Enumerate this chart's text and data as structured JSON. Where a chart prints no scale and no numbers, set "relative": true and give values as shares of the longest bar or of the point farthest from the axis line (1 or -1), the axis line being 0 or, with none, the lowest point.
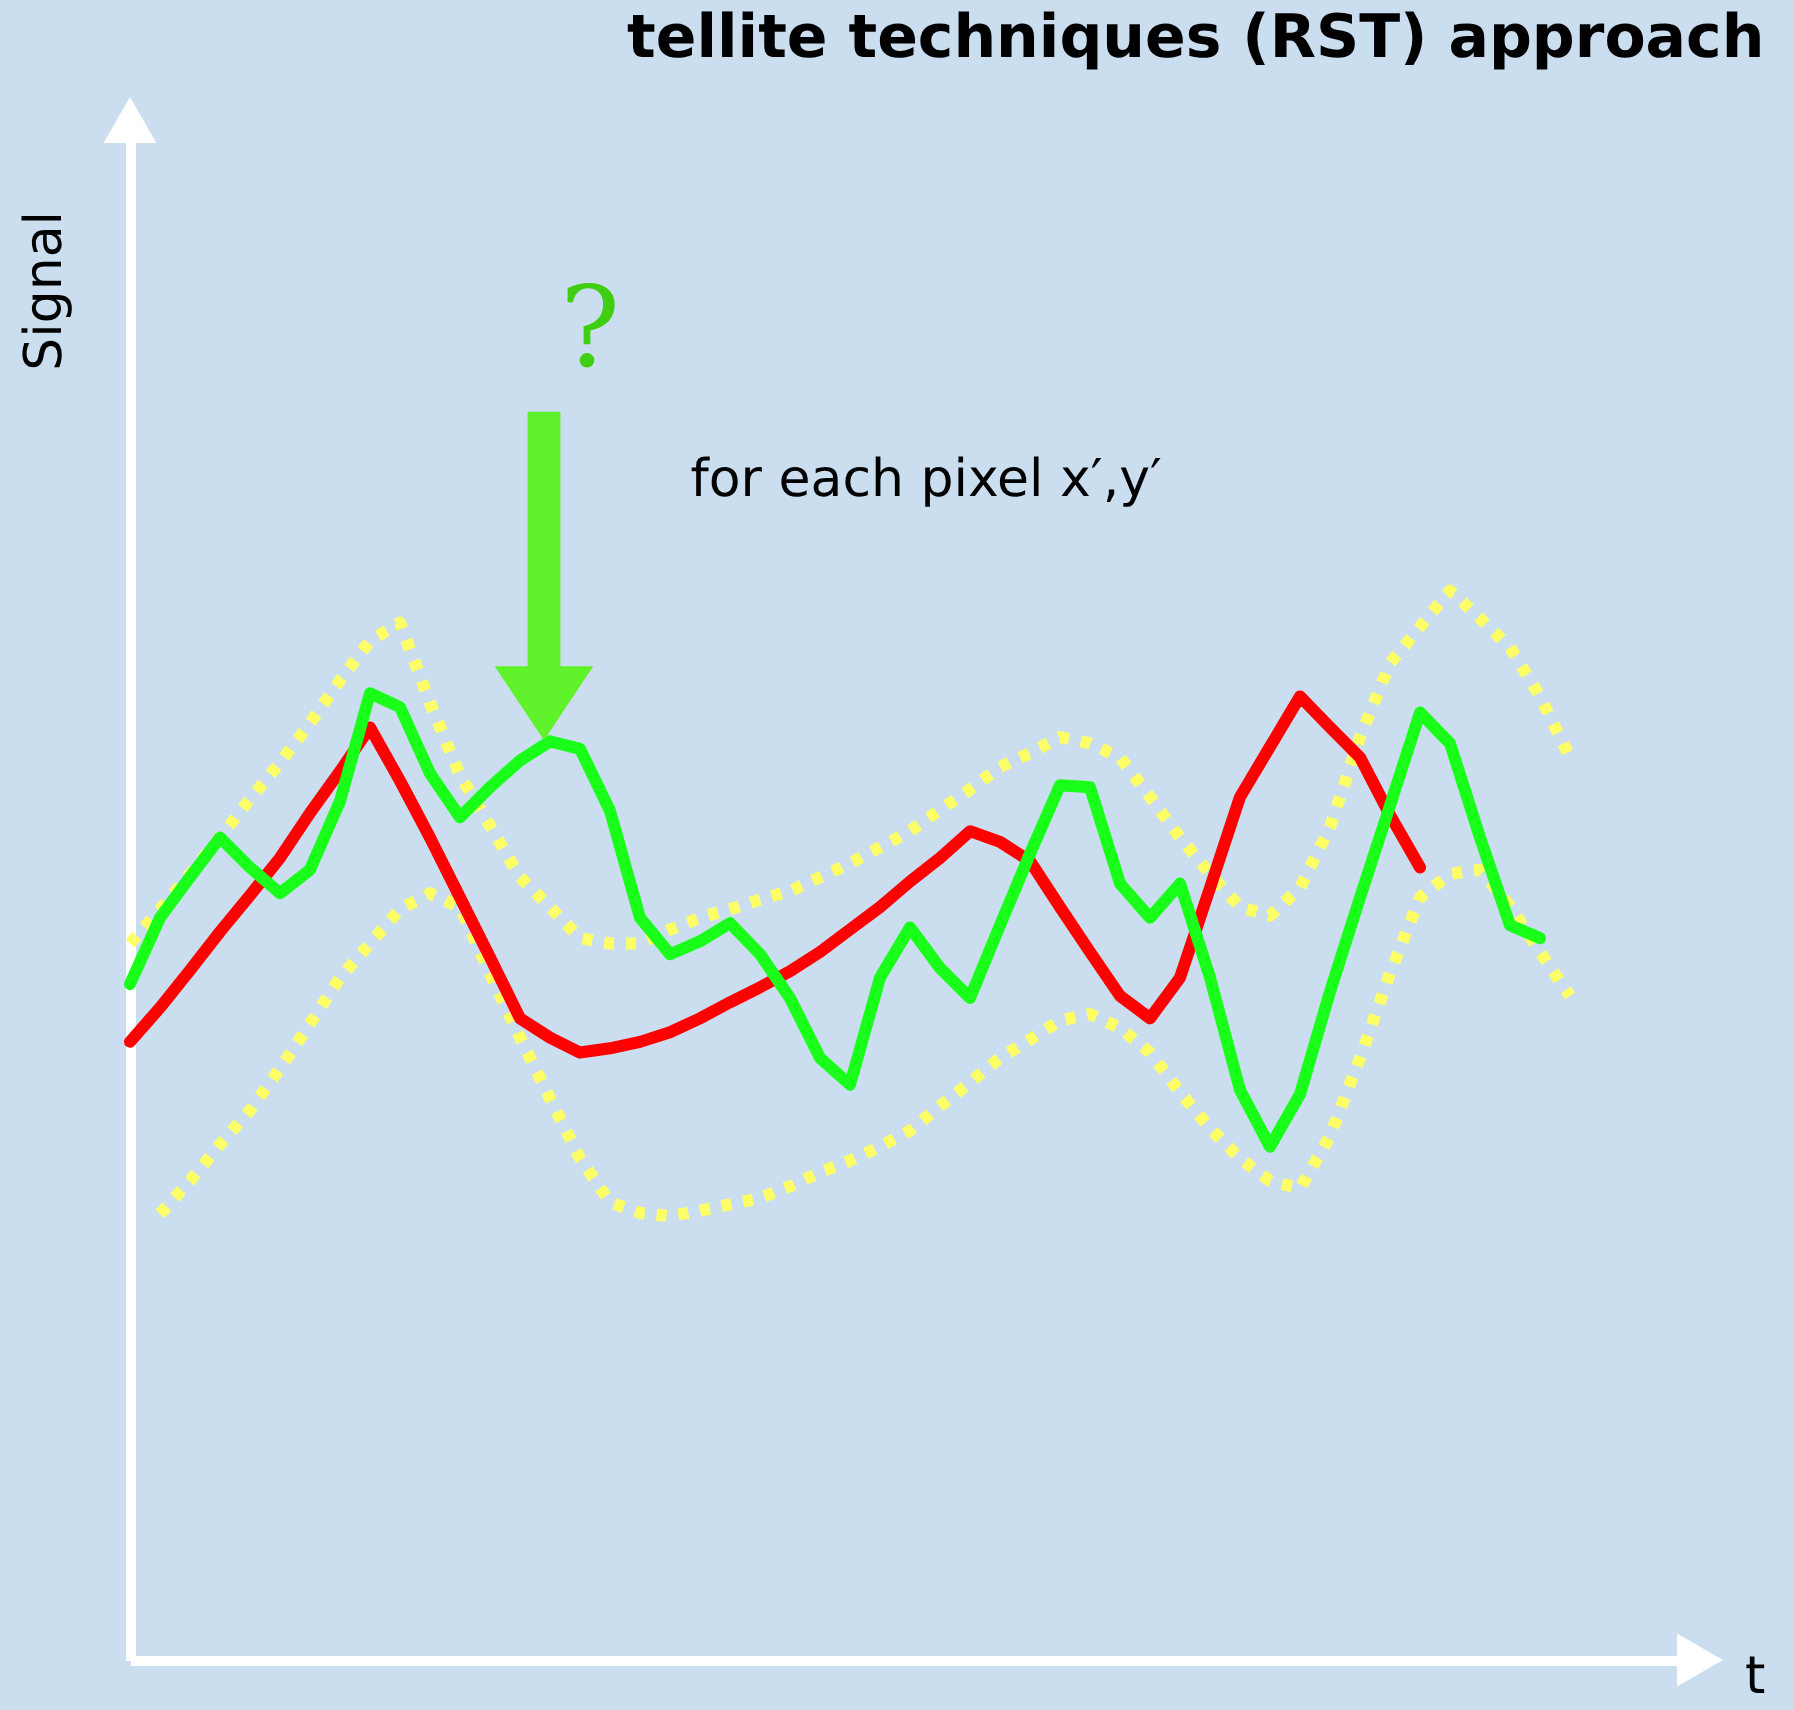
{
  "chart_data": {
    "type": "line",
    "title": "tellite techniques (RST) approach",
    "xlabel": "t",
    "ylabel": "Signal",
    "relative": true,
    "tick_labels": false,
    "grid": false,
    "legend": false,
    "marker": "none",
    "annotations": [
      "?",
      "for each pixel x′,y′"
    ],
    "categories": [
      null,
      null,
      null,
      null,
      null,
      null,
      null,
      null,
      null,
      null,
      null,
      null,
      null,
      null,
      null,
      null,
      null,
      null,
      null,
      null,
      null,
      null,
      null,
      null,
      null,
      null,
      null,
      null,
      null,
      null,
      null,
      null,
      null,
      null,
      null,
      null,
      null,
      null,
      null,
      null,
      null,
      null,
      null,
      null,
      null,
      null,
      null,
      null,
      null,
      null
    ],
    "series": [
      {
        "color": "#ffff66",
        "line_style": "dotted",
        "values": [
          0.67,
          0.702,
          0.735,
          0.769,
          0.805,
          0.839,
          0.876,
          0.916,
          0.953,
          0.97,
          0.895,
          0.827,
          0.78,
          0.732,
          0.704,
          0.675,
          0.67,
          0.67,
          0.683,
          0.694,
          0.702,
          0.711,
          0.719,
          0.732,
          0.745,
          0.76,
          0.775,
          0.795,
          0.814,
          0.835,
          0.848,
          0.863,
          0.857,
          0.844,
          0.807,
          0.769,
          0.735,
          0.704,
          0.696,
          0.722,
          0.779,
          0.863,
          0.932,
          0.966,
          1.0,
          0.974,
          0.947,
          0.901,
          0.844,
          null
        ]
      },
      {
        "color": "#ffff66",
        "line_style": "dotted",
        "values": [
          null,
          0.417,
          0.448,
          0.482,
          0.514,
          0.553,
          0.595,
          0.638,
          0.67,
          0.702,
          0.717,
          0.704,
          0.642,
          0.582,
          0.525,
          0.469,
          0.428,
          0.418,
          0.415,
          0.42,
          0.426,
          0.432,
          0.443,
          0.456,
          0.467,
          0.48,
          0.495,
          0.518,
          0.54,
          0.563,
          0.58,
          0.598,
          0.604,
          0.591,
          0.568,
          0.531,
          0.497,
          0.469,
          0.448,
          0.441,
          0.49,
          0.563,
          0.642,
          0.713,
          0.735,
          0.739,
          0.705,
          0.662,
          0.621,
          null
        ]
      },
      {
        "color": "#ff0000",
        "line_style": "solid",
        "values": [
          0.578,
          0.61,
          0.645,
          0.681,
          0.715,
          0.75,
          0.792,
          0.831,
          0.872,
          0.822,
          0.769,
          0.713,
          0.657,
          0.6,
          0.582,
          0.568,
          0.572,
          0.578,
          0.587,
          0.6,
          0.615,
          0.629,
          0.644,
          0.662,
          0.683,
          0.704,
          0.728,
          0.75,
          0.775,
          0.765,
          0.747,
          0.704,
          0.662,
          0.621,
          0.6,
          0.638,
          0.722,
          0.807,
          0.854,
          0.901,
          0.872,
          0.844,
          0.79,
          0.741,
          null,
          null,
          null,
          null,
          null,
          null
        ]
      },
      {
        "color": "#1aff1a",
        "line_style": "solid",
        "values": [
          0.632,
          0.694,
          0.732,
          0.769,
          0.741,
          0.717,
          0.739,
          0.803,
          0.904,
          0.891,
          0.829,
          0.788,
          0.816,
          0.841,
          0.859,
          0.852,
          0.794,
          0.694,
          0.66,
          0.672,
          0.689,
          0.66,
          0.619,
          0.563,
          0.538,
          0.638,
          0.685,
          0.647,
          0.619,
          0.687,
          0.754,
          0.818,
          0.816,
          0.726,
          0.694,
          0.726,
          0.638,
          0.533,
          0.48,
          0.529,
          0.625,
          0.713,
          0.799,
          0.886,
          0.857,
          0.769,
          0.687,
          0.675,
          null,
          null
        ]
      }
    ]
  }
}
